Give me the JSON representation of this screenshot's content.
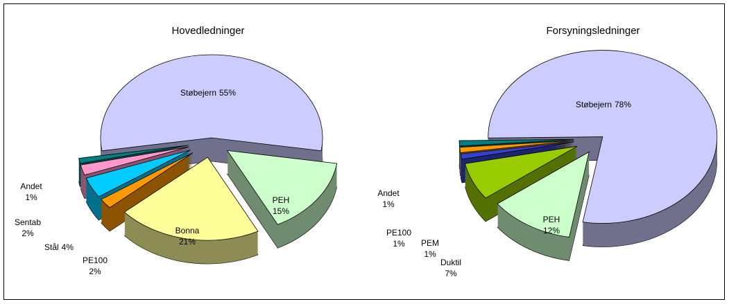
{
  "chart_data": [
    {
      "type": "pie",
      "title": "Hovedledninger",
      "categories": [
        "Støbejern",
        "PEH",
        "Bonna",
        "PE100",
        "Stål",
        "Sentab",
        "Andet"
      ],
      "values": [
        55,
        15,
        21,
        2,
        4,
        2,
        1
      ],
      "value_labels": [
        "55%",
        "15%",
        "21%",
        "2%",
        "4%",
        "2%",
        "1%"
      ],
      "colors": [
        "#ccccff",
        "#ccffcc",
        "#ffff99",
        "#ff9900",
        "#00ccff",
        "#ff99cc",
        "#008080"
      ]
    },
    {
      "type": "pie",
      "title": "Forsyningsledninger",
      "categories": [
        "Støbejern",
        "PEH",
        "Duktil",
        "PEM",
        "PE100",
        "Andet"
      ],
      "values": [
        78,
        12,
        7,
        1,
        1,
        1
      ],
      "value_labels": [
        "78%",
        "12%",
        "7%",
        "1%",
        "1%",
        "1%"
      ],
      "colors": [
        "#ccccff",
        "#ccffcc",
        "#99cc00",
        "#3344cc",
        "#ff9900",
        "#008080"
      ]
    }
  ]
}
